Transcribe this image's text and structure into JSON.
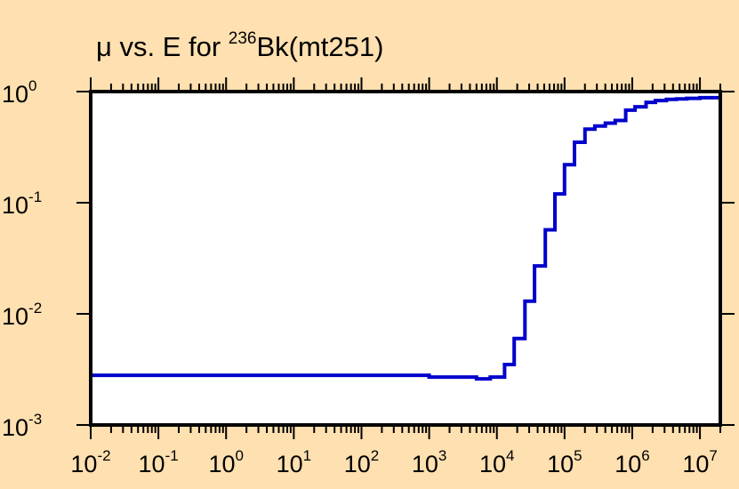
{
  "title": {
    "prefix": "μ vs. E for ",
    "superscript": "236",
    "suffix": "Bk(mt251)"
  },
  "colors": {
    "background": "#FFE0B0",
    "plot_area": "#FFFFFF",
    "axes": "#000000",
    "series": "#0000CC"
  },
  "chart_data": {
    "type": "line",
    "title": "μ vs. E for 236Bk(mt251)",
    "xlabel": "",
    "ylabel": "",
    "xscale": "log",
    "yscale": "log",
    "xlim": [
      0.01,
      20000000
    ],
    "ylim": [
      0.001,
      1
    ],
    "x_ticks": [
      {
        "base": "10",
        "exp": "-2",
        "value": 0.01
      },
      {
        "base": "10",
        "exp": "-1",
        "value": 0.1
      },
      {
        "base": "10",
        "exp": "0",
        "value": 1
      },
      {
        "base": "10",
        "exp": "1",
        "value": 10
      },
      {
        "base": "10",
        "exp": "2",
        "value": 100
      },
      {
        "base": "10",
        "exp": "3",
        "value": 1000
      },
      {
        "base": "10",
        "exp": "4",
        "value": 10000
      },
      {
        "base": "10",
        "exp": "5",
        "value": 100000
      },
      {
        "base": "10",
        "exp": "6",
        "value": 1000000
      },
      {
        "base": "10",
        "exp": "7",
        "value": 10000000
      }
    ],
    "y_ticks": [
      {
        "base": "10",
        "exp": "0",
        "value": 1
      },
      {
        "base": "10",
        "exp": "-1",
        "value": 0.1
      },
      {
        "base": "10",
        "exp": "-2",
        "value": 0.01
      },
      {
        "base": "10",
        "exp": "-3",
        "value": 0.001
      }
    ],
    "grid": false,
    "series": [
      {
        "step": true,
        "x": [
          0.01,
          1,
          100,
          1000,
          5000,
          8000,
          13000,
          18000,
          26000,
          36000,
          52000,
          72000,
          100000,
          140000,
          200000,
          280000,
          400000,
          560000,
          800000,
          1100000,
          1600000,
          2200000,
          3200000,
          4500000,
          6400000,
          10000000,
          20000000
        ],
        "y": [
          0.0028,
          0.0028,
          0.0028,
          0.0027,
          0.0026,
          0.0027,
          0.0035,
          0.006,
          0.013,
          0.027,
          0.057,
          0.12,
          0.22,
          0.35,
          0.46,
          0.49,
          0.52,
          0.55,
          0.68,
          0.73,
          0.8,
          0.83,
          0.85,
          0.86,
          0.87,
          0.88,
          0.88
        ]
      }
    ]
  }
}
